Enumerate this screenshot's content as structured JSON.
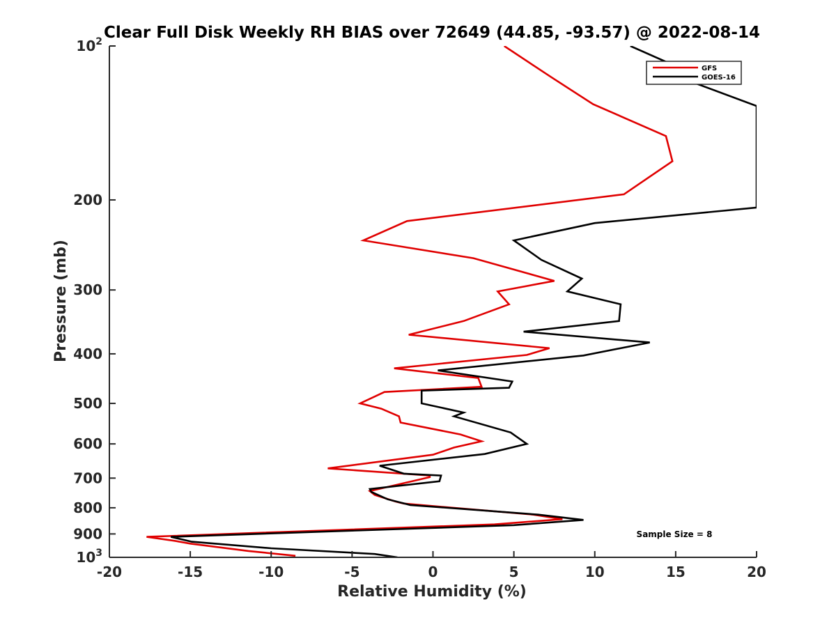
{
  "chart_data": {
    "type": "line",
    "title": "Clear Full Disk Weekly RH BIAS over 72649 (44.85, -93.57) @ 2022-08-14",
    "xlabel": "Relative Humidity (%)",
    "ylabel": "Pressure (mb)",
    "xlim": [
      -20,
      20
    ],
    "ylim": [
      100,
      1000
    ],
    "y_scale": "log",
    "y_reversed": true,
    "grid": false,
    "legend_placement": "top-right",
    "x_ticks": [
      -20,
      -15,
      -10,
      -5,
      0,
      5,
      10,
      15,
      20
    ],
    "x_tick_labels": [
      "-20",
      "-15",
      "-10",
      "-5",
      "0",
      "5",
      "10",
      "15",
      "20"
    ],
    "y_ticks": [
      100,
      200,
      300,
      400,
      500,
      600,
      700,
      800,
      900,
      1000
    ],
    "y_tick_labels": [
      {
        "base": "10",
        "exp": "2"
      },
      {
        "base": "200",
        "exp": ""
      },
      {
        "base": "300",
        "exp": ""
      },
      {
        "base": "400",
        "exp": ""
      },
      {
        "base": "500",
        "exp": ""
      },
      {
        "base": "600",
        "exp": ""
      },
      {
        "base": "700",
        "exp": ""
      },
      {
        "base": "800",
        "exp": ""
      },
      {
        "base": "900",
        "exp": ""
      },
      {
        "base": "10",
        "exp": "3"
      }
    ],
    "series": [
      {
        "name": "GFS",
        "color": "#e00000",
        "points": [
          [
            4.4,
            100
          ],
          [
            7.3,
            115
          ],
          [
            9.9,
            130
          ],
          [
            14.4,
            150
          ],
          [
            14.8,
            168
          ],
          [
            11.8,
            195
          ],
          [
            -1.6,
            220
          ],
          [
            -4.3,
            240
          ],
          [
            2.5,
            260
          ],
          [
            7.5,
            288
          ],
          [
            4.0,
            302
          ],
          [
            4.7,
            320
          ],
          [
            1.9,
            345
          ],
          [
            -1.5,
            367
          ],
          [
            7.2,
            390
          ],
          [
            5.8,
            402
          ],
          [
            -2.4,
            427
          ],
          [
            2.8,
            446
          ],
          [
            3.0,
            464
          ],
          [
            -3.0,
            475
          ],
          [
            -4.5,
            500
          ],
          [
            -3.2,
            512
          ],
          [
            -2.1,
            530
          ],
          [
            -2.0,
            545
          ],
          [
            1.7,
            575
          ],
          [
            3.0,
            593
          ],
          [
            1.3,
            610
          ],
          [
            0.0,
            630
          ],
          [
            -6.5,
            670
          ],
          [
            -0.2,
            692
          ],
          [
            -0.2,
            697
          ],
          [
            -3.9,
            742
          ],
          [
            -3.6,
            755
          ],
          [
            -2.3,
            778
          ],
          [
            -1.8,
            785
          ],
          [
            6.2,
            825
          ],
          [
            8.0,
            842
          ],
          [
            3.8,
            862
          ],
          [
            -17.7,
            912
          ],
          [
            -16.0,
            928
          ],
          [
            -15.0,
            940
          ],
          [
            -11.4,
            972
          ],
          [
            -8.5,
            993
          ]
        ]
      },
      {
        "name": "GOES-16",
        "color": "#000000",
        "points": [
          [
            12.2,
            100
          ],
          [
            15.7,
            112
          ],
          [
            15.5,
            116
          ],
          [
            20.0,
            131
          ],
          [
            20.0,
            207
          ],
          [
            10.0,
            222
          ],
          [
            5.0,
            240
          ],
          [
            6.7,
            262
          ],
          [
            9.2,
            285
          ],
          [
            8.3,
            302
          ],
          [
            11.6,
            320
          ],
          [
            11.5,
            345
          ],
          [
            5.6,
            362
          ],
          [
            13.4,
            380
          ],
          [
            9.3,
            403
          ],
          [
            0.3,
            431
          ],
          [
            4.9,
            453
          ],
          [
            4.7,
            466
          ],
          [
            -0.7,
            472
          ],
          [
            -0.7,
            500
          ],
          [
            1.9,
            521
          ],
          [
            1.3,
            530
          ],
          [
            4.8,
            570
          ],
          [
            5.8,
            600
          ],
          [
            3.2,
            628
          ],
          [
            -3.3,
            662
          ],
          [
            -1.8,
            686
          ],
          [
            0.5,
            692
          ],
          [
            0.4,
            710
          ],
          [
            -3.9,
            735
          ],
          [
            -3.8,
            745
          ],
          [
            -2.8,
            770
          ],
          [
            -1.4,
            790
          ],
          [
            6.5,
            825
          ],
          [
            9.3,
            845
          ],
          [
            5.0,
            865
          ],
          [
            -16.2,
            912
          ],
          [
            -14.9,
            932
          ],
          [
            -10.0,
            960
          ],
          [
            -3.6,
            985
          ],
          [
            -2.2,
            1000
          ]
        ]
      }
    ],
    "annotations": [
      {
        "text": "Sample Size = 8"
      }
    ]
  }
}
